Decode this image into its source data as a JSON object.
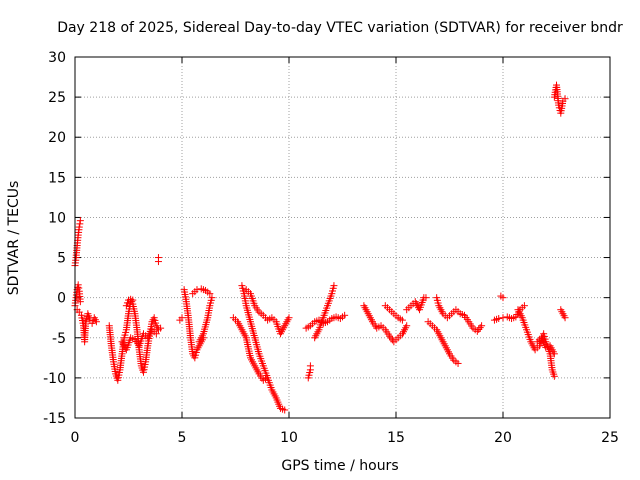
{
  "chart_data": {
    "type": "scatter",
    "title": "Day 218 of 2025, Sidereal Day-to-day VTEC variation (SDTVAR) for receiver bndr",
    "xlabel": "GPS time / hours",
    "ylabel": "SDTVAR / TECUs",
    "xlim": [
      0,
      25
    ],
    "ylim": [
      -15,
      30
    ],
    "xticks": [
      "0",
      "5",
      "10",
      "15",
      "20",
      "25"
    ],
    "yticks": [
      "-15",
      "-10",
      "-5",
      "0",
      "5",
      "10",
      "15",
      "20",
      "25",
      "30"
    ],
    "grid": true,
    "marker": "plus",
    "color": "#ff0000",
    "series": [
      {
        "name": "SDTVAR",
        "segments": [
          [
            [
              0.0,
              4.0
            ],
            [
              0.05,
              5.0
            ],
            [
              0.1,
              6.5
            ],
            [
              0.15,
              7.8
            ],
            [
              0.2,
              8.8
            ],
            [
              0.25,
              9.6
            ]
          ],
          [
            [
              0.0,
              -1.0
            ],
            [
              0.05,
              0.0
            ],
            [
              0.1,
              1.0
            ],
            [
              0.15,
              1.6
            ],
            [
              0.2,
              0.8
            ],
            [
              0.25,
              -0.5
            ]
          ],
          [
            [
              0.1,
              -1.5
            ],
            [
              0.2,
              -1.8
            ],
            [
              0.3,
              -2.2
            ],
            [
              0.4,
              -3.5
            ],
            [
              0.45,
              -5.5
            ],
            [
              0.5,
              -3.0
            ],
            [
              0.6,
              -2.0
            ],
            [
              0.7,
              -2.8
            ],
            [
              0.8,
              -3.2
            ],
            [
              0.9,
              -2.5
            ],
            [
              1.0,
              -3.0
            ]
          ],
          [
            [
              1.6,
              -3.5
            ],
            [
              1.7,
              -6.0
            ],
            [
              1.8,
              -8.0
            ],
            [
              1.9,
              -9.5
            ],
            [
              2.0,
              -10.3
            ],
            [
              2.1,
              -9.0
            ],
            [
              2.2,
              -7.0
            ],
            [
              2.3,
              -5.0
            ],
            [
              2.4,
              -4.0
            ],
            [
              2.5,
              -2.0
            ],
            [
              2.6,
              -0.5
            ],
            [
              2.7,
              -0.3
            ]
          ],
          [
            [
              2.4,
              -1.0
            ],
            [
              2.5,
              -0.3
            ],
            [
              2.6,
              -0.2
            ],
            [
              2.7,
              -0.8
            ],
            [
              2.8,
              -2.0
            ],
            [
              2.9,
              -4.0
            ],
            [
              3.0,
              -6.5
            ],
            [
              3.1,
              -8.5
            ],
            [
              3.2,
              -9.3
            ],
            [
              3.3,
              -8.0
            ],
            [
              3.4,
              -6.0
            ],
            [
              3.5,
              -4.5
            ],
            [
              3.6,
              -3.0
            ],
            [
              3.7,
              -2.5
            ],
            [
              3.8,
              -3.5
            ],
            [
              3.9,
              -4.0
            ],
            [
              4.0,
              -3.8
            ]
          ],
          [
            [
              2.2,
              -5.5
            ],
            [
              2.4,
              -6.5
            ],
            [
              2.6,
              -5.0
            ],
            [
              2.8,
              -5.2
            ],
            [
              3.0,
              -6.0
            ],
            [
              3.2,
              -4.5
            ],
            [
              3.4,
              -5.0
            ],
            [
              3.6,
              -4.0
            ],
            [
              3.8,
              -4.5
            ]
          ],
          [
            [
              3.9,
              4.5
            ],
            [
              3.9,
              5.0
            ]
          ],
          [
            [
              4.9,
              -2.8
            ],
            [
              5.0,
              -2.5
            ]
          ],
          [
            [
              5.1,
              1.0
            ],
            [
              5.2,
              -0.5
            ],
            [
              5.3,
              -2.5
            ],
            [
              5.4,
              -5.0
            ],
            [
              5.5,
              -7.0
            ],
            [
              5.6,
              -7.5
            ],
            [
              5.7,
              -6.5
            ],
            [
              5.8,
              -6.0
            ],
            [
              5.9,
              -5.5
            ],
            [
              6.0,
              -5.0
            ]
          ],
          [
            [
              5.5,
              0.5
            ],
            [
              5.7,
              1.0
            ],
            [
              5.9,
              1.1
            ],
            [
              6.1,
              0.9
            ],
            [
              6.3,
              0.5
            ]
          ],
          [
            [
              5.8,
              -5.5
            ],
            [
              6.0,
              -4.5
            ],
            [
              6.2,
              -2.5
            ],
            [
              6.3,
              -1.0
            ],
            [
              6.4,
              0.0
            ]
          ],
          [
            [
              7.4,
              -2.5
            ],
            [
              7.6,
              -3.0
            ],
            [
              7.8,
              -4.0
            ],
            [
              8.0,
              -5.0
            ],
            [
              8.2,
              -7.5
            ],
            [
              8.4,
              -8.5
            ],
            [
              8.6,
              -9.5
            ],
            [
              8.8,
              -10.3
            ],
            [
              9.0,
              -10.0
            ]
          ],
          [
            [
              7.8,
              1.5
            ],
            [
              7.9,
              0.5
            ],
            [
              8.0,
              -1.0
            ],
            [
              8.2,
              -3.0
            ],
            [
              8.4,
              -5.0
            ],
            [
              8.6,
              -7.0
            ],
            [
              8.8,
              -8.5
            ],
            [
              9.0,
              -10.0
            ],
            [
              9.2,
              -11.5
            ],
            [
              9.4,
              -12.5
            ],
            [
              9.6,
              -13.8
            ],
            [
              9.8,
              -14.0
            ]
          ],
          [
            [
              8.0,
              1.0
            ],
            [
              8.2,
              0.5
            ],
            [
              8.4,
              -1.0
            ],
            [
              8.6,
              -1.8
            ],
            [
              8.8,
              -2.2
            ],
            [
              9.0,
              -2.8
            ],
            [
              9.2,
              -2.5
            ],
            [
              9.4,
              -3.0
            ],
            [
              9.6,
              -4.5
            ],
            [
              9.8,
              -3.5
            ],
            [
              10.0,
              -2.5
            ]
          ],
          [
            [
              10.9,
              -10.0
            ],
            [
              11.0,
              -9.0
            ],
            [
              11.0,
              -8.5
            ]
          ],
          [
            [
              10.8,
              -3.8
            ],
            [
              11.0,
              -3.5
            ],
            [
              11.2,
              -3.0
            ],
            [
              11.4,
              -2.8
            ],
            [
              11.6,
              -3.2
            ],
            [
              11.8,
              -3.0
            ],
            [
              12.0,
              -2.6
            ],
            [
              12.2,
              -2.4
            ],
            [
              12.4,
              -2.6
            ],
            [
              12.6,
              -2.2
            ]
          ],
          [
            [
              11.2,
              -5.0
            ],
            [
              11.4,
              -4.0
            ],
            [
              11.6,
              -2.5
            ],
            [
              11.8,
              -1.0
            ],
            [
              12.0,
              0.5
            ],
            [
              12.1,
              1.5
            ]
          ],
          [
            [
              13.5,
              -1.0
            ],
            [
              13.7,
              -2.0
            ],
            [
              13.9,
              -3.0
            ],
            [
              14.1,
              -3.8
            ],
            [
              14.3,
              -3.5
            ],
            [
              14.5,
              -4.0
            ],
            [
              14.7,
              -4.8
            ],
            [
              14.9,
              -5.5
            ],
            [
              15.1,
              -5.0
            ],
            [
              15.3,
              -4.5
            ],
            [
              15.5,
              -3.5
            ]
          ],
          [
            [
              14.5,
              -1.0
            ],
            [
              14.7,
              -1.5
            ],
            [
              14.9,
              -2.0
            ],
            [
              15.1,
              -2.5
            ],
            [
              15.3,
              -2.8
            ]
          ],
          [
            [
              15.5,
              -1.5
            ],
            [
              15.7,
              -1.0
            ],
            [
              15.9,
              -0.5
            ],
            [
              16.1,
              -1.5
            ],
            [
              16.3,
              0.0
            ],
            [
              16.4,
              0.0
            ]
          ],
          [
            [
              16.5,
              -3.0
            ],
            [
              16.7,
              -3.5
            ],
            [
              16.9,
              -4.0
            ],
            [
              17.1,
              -5.0
            ],
            [
              17.3,
              -6.0
            ],
            [
              17.5,
              -7.0
            ],
            [
              17.7,
              -7.8
            ],
            [
              17.9,
              -8.2
            ]
          ],
          [
            [
              16.9,
              0.0
            ],
            [
              17.0,
              -1.0
            ],
            [
              17.2,
              -2.0
            ],
            [
              17.4,
              -2.5
            ],
            [
              17.6,
              -2.0
            ],
            [
              17.8,
              -1.5
            ],
            [
              18.0,
              -2.0
            ],
            [
              18.2,
              -2.2
            ],
            [
              18.4,
              -3.0
            ],
            [
              18.6,
              -3.8
            ],
            [
              18.8,
              -4.2
            ],
            [
              19.0,
              -3.5
            ]
          ],
          [
            [
              19.9,
              0.2
            ],
            [
              20.0,
              0.0
            ]
          ],
          [
            [
              19.6,
              -2.8
            ],
            [
              19.8,
              -2.6
            ],
            [
              20.0,
              -2.5
            ],
            [
              20.2,
              -2.4
            ],
            [
              20.4,
              -2.6
            ],
            [
              20.6,
              -2.4
            ],
            [
              20.8,
              -1.5
            ],
            [
              21.0,
              -1.0
            ]
          ],
          [
            [
              20.7,
              -1.5
            ],
            [
              20.9,
              -2.5
            ],
            [
              21.1,
              -4.0
            ],
            [
              21.3,
              -5.5
            ],
            [
              21.5,
              -6.5
            ],
            [
              21.7,
              -6.0
            ],
            [
              21.9,
              -4.5
            ],
            [
              22.0,
              -5.5
            ],
            [
              22.2,
              -7.0
            ],
            [
              22.3,
              -9.0
            ],
            [
              22.4,
              -9.8
            ]
          ],
          [
            [
              21.6,
              -5.5
            ],
            [
              21.8,
              -5.0
            ],
            [
              22.0,
              -6.2
            ],
            [
              22.2,
              -6.0
            ],
            [
              22.4,
              -7.0
            ]
          ],
          [
            [
              22.4,
              25.0
            ],
            [
              22.5,
              26.5
            ],
            [
              22.6,
              24.0
            ],
            [
              22.7,
              23.0
            ],
            [
              22.8,
              24.5
            ],
            [
              22.9,
              24.8
            ]
          ],
          [
            [
              22.7,
              -1.5
            ],
            [
              22.8,
              -2.0
            ],
            [
              22.9,
              -2.5
            ]
          ]
        ]
      }
    ]
  }
}
